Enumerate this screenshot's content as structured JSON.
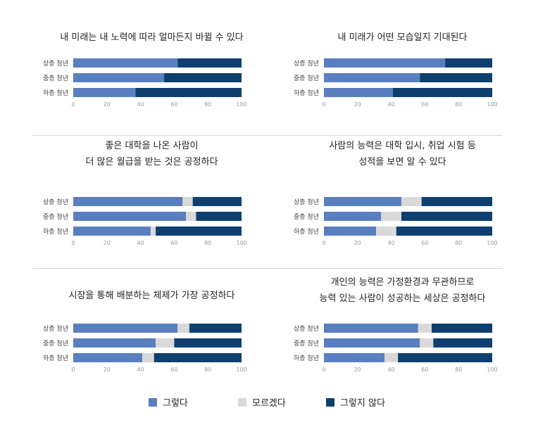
{
  "legend": {
    "items": [
      {
        "label": "그렇다",
        "color": "#5a7fc0"
      },
      {
        "label": "모르겠다",
        "color": "#d9d9d9"
      },
      {
        "label": "그렇지 않다",
        "color": "#0e3f6e"
      }
    ]
  },
  "chart_data": [
    {
      "type": "bar",
      "stacked": true,
      "orientation": "horizontal",
      "title": [
        "내 미래는 내 노력에 따라 얼마든지 바뀔 수 있다"
      ],
      "categories": [
        "상층 청년",
        "중층 청년",
        "하층 청년"
      ],
      "xlim": [
        0,
        100
      ],
      "ticks": [
        "0",
        "20",
        "40",
        "60",
        "80",
        "100"
      ],
      "series": [
        {
          "name": "그렇다",
          "values": [
            62,
            54,
            37
          ]
        },
        {
          "name": "모르겠다",
          "values": [
            0,
            0,
            0
          ]
        },
        {
          "name": "그렇지 않다",
          "values": [
            38,
            46,
            63
          ]
        }
      ]
    },
    {
      "type": "bar",
      "stacked": true,
      "orientation": "horizontal",
      "title": [
        "내 미래가 어떤 모습일지 기대된다"
      ],
      "categories": [
        "상층 청년",
        "중층 청년",
        "하층 청년"
      ],
      "xlim": [
        0,
        100
      ],
      "ticks": [
        "0",
        "20",
        "40",
        "60",
        "80",
        "100"
      ],
      "series": [
        {
          "name": "그렇다",
          "values": [
            72,
            57,
            41
          ]
        },
        {
          "name": "모르겠다",
          "values": [
            0,
            0,
            0
          ]
        },
        {
          "name": "그렇지 않다",
          "values": [
            28,
            43,
            59
          ]
        }
      ]
    },
    {
      "type": "bar",
      "stacked": true,
      "orientation": "horizontal",
      "title": [
        "좋은 대학을 나온 사람이",
        "더 많은 월급을 받는 것은 공정하다"
      ],
      "categories": [
        "상층 청년",
        "중층 청년",
        "하층 청년"
      ],
      "xlim": [
        0,
        100
      ],
      "ticks": [
        "0",
        "20",
        "40",
        "60",
        "80",
        "100"
      ],
      "series": [
        {
          "name": "그렇다",
          "values": [
            65,
            67,
            46
          ]
        },
        {
          "name": "모르겠다",
          "values": [
            6,
            6,
            3
          ]
        },
        {
          "name": "그렇지 않다",
          "values": [
            29,
            27,
            51
          ]
        }
      ]
    },
    {
      "type": "bar",
      "stacked": true,
      "orientation": "horizontal",
      "title": [
        "사람의 능력은 대학 입시, 취업 시험 등",
        "성적을 보면 알 수 있다"
      ],
      "categories": [
        "상층 청년",
        "중층 청년",
        "하층 청년"
      ],
      "xlim": [
        0,
        100
      ],
      "ticks": [
        "0",
        "20",
        "40",
        "60",
        "80",
        "100"
      ],
      "series": [
        {
          "name": "그렇다",
          "values": [
            46,
            34,
            31
          ]
        },
        {
          "name": "모르겠다",
          "values": [
            12,
            12,
            12
          ]
        },
        {
          "name": "그렇지 않다",
          "values": [
            42,
            54,
            57
          ]
        }
      ]
    },
    {
      "type": "bar",
      "stacked": true,
      "orientation": "horizontal",
      "title": [
        "시장을 통해 배분하는 체제가 가장 공정하다"
      ],
      "categories": [
        "상층 청년",
        "중층 청년",
        "하층 청년"
      ],
      "xlim": [
        0,
        100
      ],
      "ticks": [
        "0",
        "20",
        "40",
        "60",
        "80",
        "100"
      ],
      "series": [
        {
          "name": "그렇다",
          "values": [
            62,
            49,
            41
          ]
        },
        {
          "name": "모르겠다",
          "values": [
            7,
            11,
            7
          ]
        },
        {
          "name": "그렇지 않다",
          "values": [
            31,
            40,
            52
          ]
        }
      ]
    },
    {
      "type": "bar",
      "stacked": true,
      "orientation": "horizontal",
      "title": [
        "개인의 능력은 가정환경과 무관하므로",
        "능력 있는 사람이 성공하는 세상은 공정하다"
      ],
      "categories": [
        "상층 청년",
        "중층 청년",
        "하층 청년"
      ],
      "xlim": [
        0,
        100
      ],
      "ticks": [
        "0",
        "20",
        "40",
        "60",
        "80",
        "100"
      ],
      "series": [
        {
          "name": "그렇다",
          "values": [
            56,
            57,
            36
          ]
        },
        {
          "name": "모르겠다",
          "values": [
            8,
            8,
            8
          ]
        },
        {
          "name": "그렇지 않다",
          "values": [
            36,
            35,
            56
          ]
        }
      ]
    }
  ]
}
